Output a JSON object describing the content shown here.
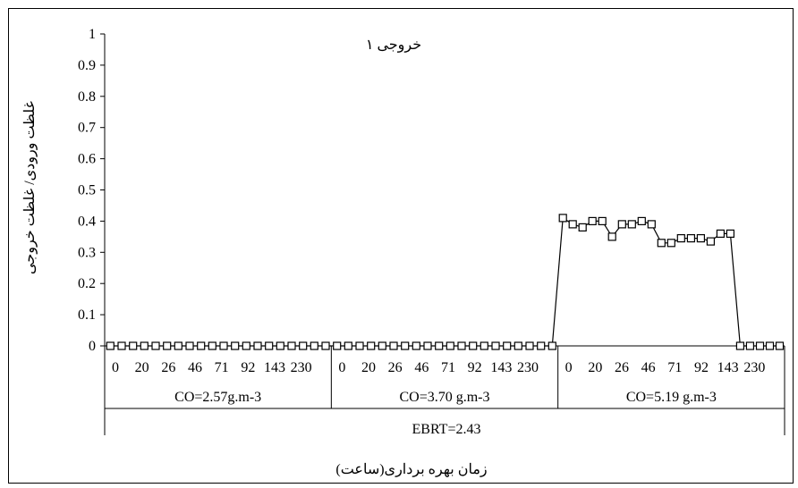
{
  "chart_data": {
    "type": "line",
    "title": "خروجی ۱",
    "xlabel": "زمان بهره برداری(ساعت)",
    "ylabel": "غلظت ورودی/ غلظت خروجی",
    "ylim": [
      0,
      1
    ],
    "yticks": [
      "0",
      "0.1",
      "0.2",
      "0.3",
      "0.4",
      "0.5",
      "0.6",
      "0.7",
      "0.8",
      "0.9",
      "1"
    ],
    "grid": false,
    "marker": "square",
    "groups": [
      {
        "label": "CO=2.57g.m-3",
        "tick_labels": [
          "0",
          "20",
          "26",
          "46",
          "71",
          "92",
          "143",
          "230"
        ],
        "values": [
          0,
          0,
          0,
          0,
          0,
          0,
          0,
          0,
          0,
          0,
          0,
          0,
          0,
          0,
          0,
          0,
          0,
          0,
          0,
          0
        ]
      },
      {
        "label": "CO=3.70 g.m-3",
        "tick_labels": [
          "0",
          "20",
          "26",
          "46",
          "71",
          "92",
          "143",
          "230"
        ],
        "values": [
          0,
          0,
          0,
          0,
          0,
          0,
          0,
          0,
          0,
          0,
          0,
          0,
          0,
          0,
          0,
          0,
          0,
          0,
          0,
          0
        ]
      },
      {
        "label": "CO=5.19 g.m-3",
        "tick_labels": [
          "0",
          "20",
          "26",
          "46",
          "71",
          "92",
          "143",
          "230"
        ],
        "values": [
          0.41,
          0.39,
          0.38,
          0.4,
          0.4,
          0.35,
          0.39,
          0.39,
          0.4,
          0.39,
          0.33,
          0.33,
          0.345,
          0.345,
          0.345,
          0.335,
          0.36,
          0.36,
          0,
          0,
          0,
          0,
          0
        ]
      }
    ],
    "outer_group_label": "EBRT=2.43"
  }
}
